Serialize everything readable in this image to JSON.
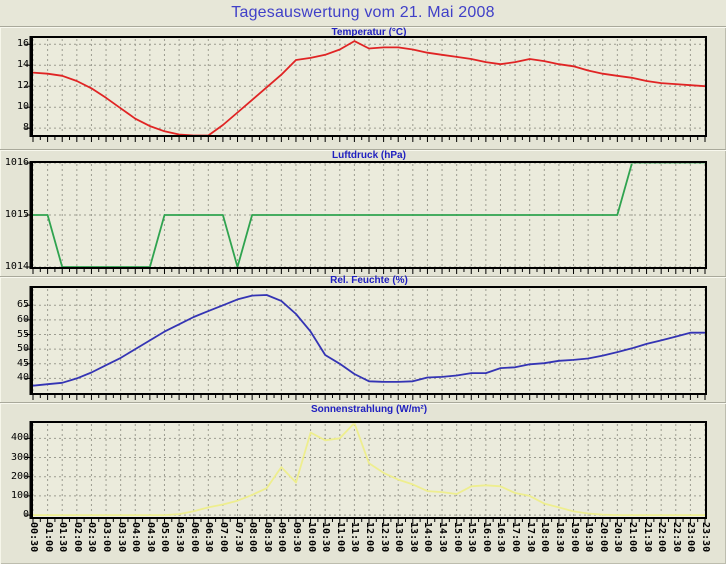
{
  "header": {
    "title": "Tagesauswertung vom 21. Mai 2008"
  },
  "colors": {
    "page_bg": "#e4e4d5",
    "plot_bg": "#ebebdc",
    "grid": "#9c9c90",
    "axis": "#000000",
    "main_title_text": "#4040c8",
    "chart_title_text": "#2020c0"
  },
  "chart_data": {
    "type": "line",
    "legend": "none",
    "grid": true,
    "categories": [
      "00:30",
      "01:00",
      "01:30",
      "02:00",
      "02:30",
      "03:00",
      "03:30",
      "04:00",
      "04:30",
      "05:00",
      "05:30",
      "06:00",
      "06:30",
      "07:00",
      "07:30",
      "08:00",
      "08:30",
      "09:00",
      "09:30",
      "10:00",
      "10:30",
      "11:00",
      "11:30",
      "12:00",
      "12:30",
      "13:00",
      "13:30",
      "14:00",
      "14:30",
      "15:00",
      "15:30",
      "16:00",
      "16:30",
      "17:00",
      "17:30",
      "18:00",
      "18:30",
      "19:00",
      "19:30",
      "20:00",
      "20:30",
      "21:00",
      "21:30",
      "22:00",
      "22:30",
      "23:00",
      "23:30"
    ],
    "charts": [
      {
        "name": "temperatur",
        "type": "line",
        "title": "Temperatur (°C)",
        "line_color": "#e02424",
        "ylim": [
          7.35,
          16.6
        ],
        "yticks": [
          16,
          14,
          12,
          10,
          8
        ],
        "values": [
          13.3,
          13.2,
          13.0,
          12.5,
          11.8,
          10.9,
          9.9,
          8.9,
          8.2,
          7.7,
          7.4,
          7.3,
          7.3,
          8.3,
          9.5,
          10.7,
          11.9,
          13.1,
          14.5,
          14.7,
          15.0,
          15.5,
          16.3,
          15.6,
          15.7,
          15.7,
          15.5,
          15.2,
          15.0,
          14.8,
          14.6,
          14.3,
          14.1,
          14.3,
          14.6,
          14.4,
          14.1,
          13.9,
          13.5,
          13.2,
          13.0,
          12.8,
          12.5,
          12.3,
          12.2,
          12.1,
          12.0
        ]
      },
      {
        "name": "luftdruck",
        "type": "line",
        "title": "Luftdruck (hPa)",
        "line_color": "#2fa34f",
        "ylim": [
          1014,
          1016
        ],
        "yticks": [
          1016,
          1015,
          1014
        ],
        "values": [
          1015,
          1015,
          1014,
          1014,
          1014,
          1014,
          1014,
          1014,
          1014,
          1015,
          1015,
          1015,
          1015,
          1015,
          1014,
          1015,
          1015,
          1015,
          1015,
          1015,
          1015,
          1015,
          1015,
          1015,
          1015,
          1015,
          1015,
          1015,
          1015,
          1015,
          1015,
          1015,
          1015,
          1015,
          1015,
          1015,
          1015,
          1015,
          1015,
          1015,
          1015,
          1016,
          1016,
          1016,
          1016,
          1016,
          1016
        ]
      },
      {
        "name": "rel-feuchte",
        "type": "line",
        "title": "Rel. Feuchte (%)",
        "line_color": "#3434b4",
        "ylim": [
          35,
          70.9
        ],
        "yticks": [
          65,
          60,
          55,
          50,
          45,
          40
        ],
        "values": [
          37.5,
          38.0,
          38.5,
          40.0,
          42.0,
          44.5,
          47.0,
          50.0,
          53.0,
          56.0,
          58.5,
          61.0,
          63.0,
          65.0,
          67.0,
          68.3,
          68.5,
          66.5,
          62.0,
          56.0,
          48.0,
          45.0,
          41.5,
          39.0,
          38.8,
          38.8,
          39.0,
          40.3,
          40.5,
          41.0,
          41.8,
          41.8,
          43.5,
          43.8,
          44.8,
          45.2,
          46.0,
          46.3,
          46.8,
          47.8,
          49.0,
          50.3,
          51.8,
          53.0,
          54.3,
          55.6,
          55.6
        ]
      },
      {
        "name": "sonnenstrahlung",
        "type": "line",
        "title": "Sonnenstrahlung (W/m²)",
        "line_color": "#eeee8e",
        "ylim": [
          -10,
          480
        ],
        "yticks": [
          400,
          300,
          200,
          100,
          0
        ],
        "values": [
          0,
          0,
          0,
          0,
          0,
          0,
          0,
          0,
          0,
          0,
          5,
          20,
          40,
          55,
          75,
          105,
          140,
          250,
          170,
          430,
          390,
          400,
          480,
          270,
          220,
          185,
          160,
          125,
          120,
          110,
          150,
          155,
          150,
          115,
          100,
          60,
          40,
          19,
          8,
          2,
          0,
          0,
          0,
          0,
          0,
          0,
          0
        ]
      }
    ]
  }
}
